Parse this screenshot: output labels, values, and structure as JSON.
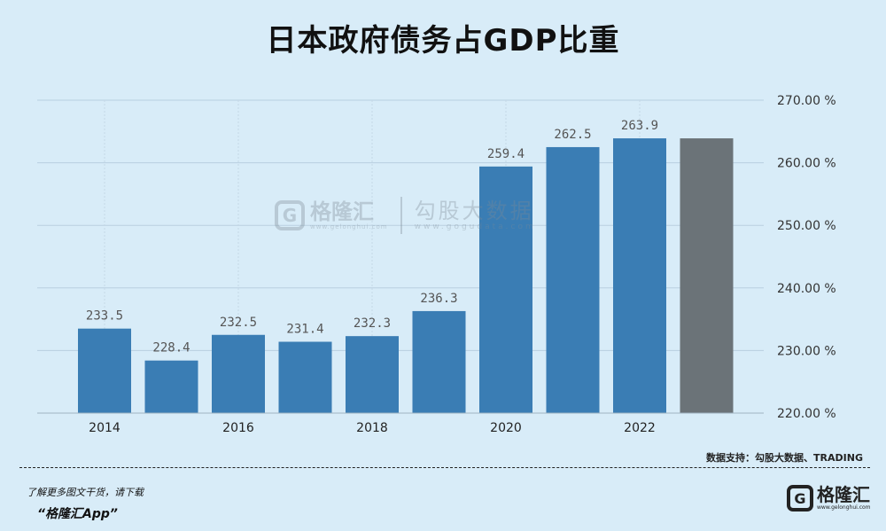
{
  "title": "日本政府债务占GDP比重",
  "watermark": {
    "brand": "格隆汇",
    "brand_url": "www.gelonghui.com",
    "data_brand": "勾股大数据",
    "data_url": "www.gogudata.com"
  },
  "source": "数据支持：勾股大数据、TRADING",
  "footer": {
    "line1": "了解更多图文干货，请下载",
    "line2": "“格隆汇App”",
    "logo_text": "格隆汇",
    "logo_url": "www.gelonghui.com"
  },
  "colors": {
    "bar": "#3a7db4",
    "bar_last": "#6b7378",
    "background": "#d8ecf8"
  },
  "chart_data": {
    "type": "bar",
    "categories": [
      "2014",
      "2015",
      "2016",
      "2017",
      "2018",
      "2019",
      "2020",
      "2021",
      "2022",
      "2023"
    ],
    "x_tick_labels": [
      "2014",
      "",
      "2016",
      "",
      "2018",
      "",
      "2020",
      "",
      "2022",
      ""
    ],
    "values": [
      233.5,
      228.4,
      232.5,
      231.4,
      232.3,
      236.3,
      259.4,
      262.5,
      263.9,
      263.9
    ],
    "data_labels": [
      "233.5",
      "228.4",
      "232.5",
      "231.4",
      "232.3",
      "236.3",
      "259.4",
      "262.5",
      "263.9",
      ""
    ],
    "ylim": [
      220,
      270
    ],
    "y_ticks": [
      220,
      230,
      240,
      250,
      260,
      270
    ],
    "y_tick_labels": [
      "220.00 %",
      "230.00 %",
      "240.00 %",
      "250.00 %",
      "260.00 %",
      "270.00 %"
    ],
    "y_axis_side": "right",
    "grid": true,
    "title": "日本政府债务占GDP比重",
    "xlabel": "",
    "ylabel": ""
  }
}
